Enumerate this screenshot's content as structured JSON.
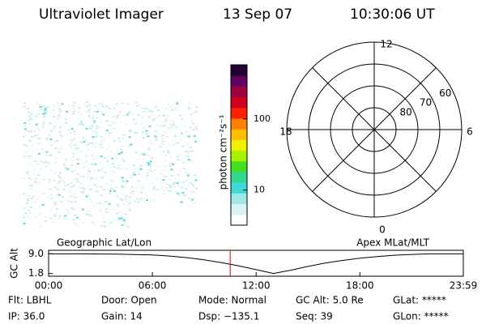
{
  "header": {
    "title": "Ultraviolet Imager",
    "date": "13 Sep 07",
    "time": "10:30:06 UT"
  },
  "colorbar": {
    "label": "photon cm⁻²s⁻¹",
    "log": true,
    "lim": [
      3.2,
      577
    ],
    "ticks": [
      10,
      100
    ],
    "colors": [
      "#ffffff",
      "#d8f4f4",
      "#a0e8e8",
      "#40d8d8",
      "#30d890",
      "#40e020",
      "#a8f000",
      "#f0f000",
      "#ffc000",
      "#ff8000",
      "#ff2000",
      "#d00020",
      "#a00040",
      "#600060",
      "#200030"
    ]
  },
  "polar": {
    "rlim": [
      90,
      50
    ],
    "rings": [
      80,
      70,
      60
    ],
    "mlt_labels": [
      "12",
      "18",
      "6",
      "0"
    ]
  },
  "chart_data": {
    "type": "line",
    "ylabel": "GC Alt",
    "left_label": "Geographic Lat/Lon",
    "right_label": "Apex MLat/MLT",
    "x": [
      0,
      2,
      4,
      6,
      7,
      8,
      9,
      10,
      11,
      12,
      13,
      14,
      15,
      16,
      17,
      18,
      19,
      20,
      21,
      22,
      23.98
    ],
    "values": [
      9.0,
      9.0,
      8.9,
      8.6,
      8.2,
      7.6,
      6.8,
      5.8,
      4.6,
      3.2,
      1.8,
      3.0,
      4.4,
      5.6,
      6.6,
      7.4,
      8.0,
      8.5,
      8.8,
      9.0,
      9.0
    ],
    "color": "#000000",
    "marker_x": 10.5,
    "marker_color": "#e00000",
    "xlim": [
      0,
      23.98
    ],
    "ylim": [
      0.8,
      10.3
    ],
    "xticks": [
      {
        "value": 0,
        "label": "00:00"
      },
      {
        "value": 6,
        "label": "06:00"
      },
      {
        "value": 12,
        "label": "12:00"
      },
      {
        "value": 18,
        "label": "18:00"
      },
      {
        "value": 23.98,
        "label": "23:59"
      }
    ],
    "yticks": [
      {
        "value": 9.0,
        "label": "9.0"
      },
      {
        "value": 1.8,
        "label": "1.8"
      }
    ]
  },
  "footer": [
    [
      "Flt: LBHL",
      "Door: Open",
      "Mode: Normal",
      "GC Alt: 5.0 Re",
      "GLat: *****"
    ],
    [
      "IP: 36.0",
      "Gain: 14",
      "Dsp: −135.1",
      "Seq: 39",
      "GLon: *****"
    ]
  ]
}
